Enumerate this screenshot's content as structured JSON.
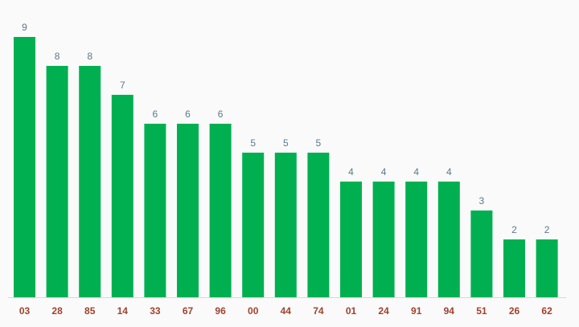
{
  "chart_data": {
    "type": "bar",
    "title": "",
    "xlabel": "",
    "ylabel": "",
    "categories": [
      "03",
      "28",
      "85",
      "14",
      "33",
      "67",
      "96",
      "00",
      "44",
      "74",
      "01",
      "24",
      "91",
      "94",
      "51",
      "26",
      "62"
    ],
    "values": [
      9,
      8,
      8,
      7,
      6,
      6,
      6,
      5,
      5,
      5,
      4,
      4,
      4,
      4,
      3,
      2,
      2
    ],
    "ylim": [
      0,
      9
    ],
    "grid": false,
    "data_labels": true,
    "colors": {
      "bar": "#00b050",
      "value_label": "#5b7a8c",
      "tick_label": "#a0412d",
      "baseline": "#d9d9d9",
      "background": "#fafafa"
    }
  }
}
